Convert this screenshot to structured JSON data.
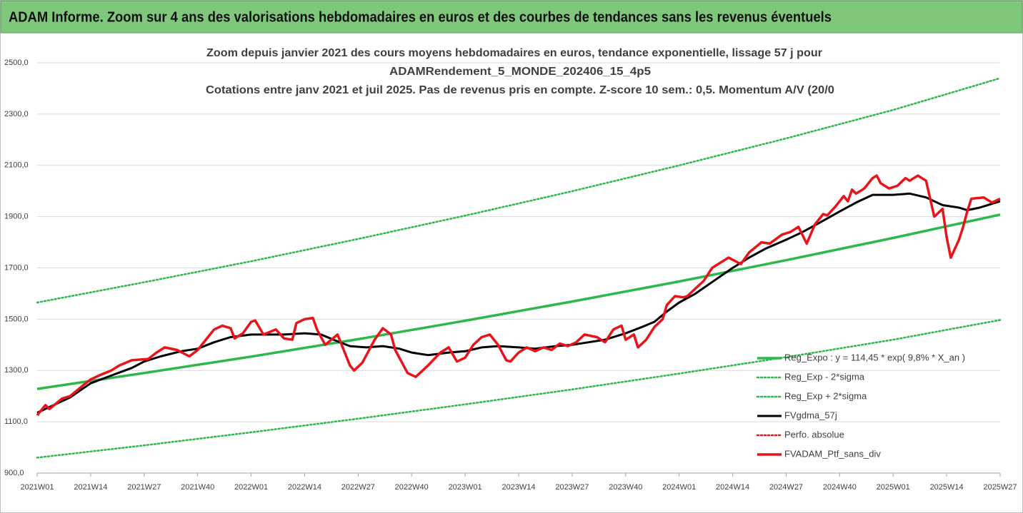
{
  "header": {
    "title": "ADAM Informe. Zoom sur 4 ans des valorisations hebdomadaires en euros et des courbes de tendances sans les revenus éventuels"
  },
  "chart_data": {
    "type": "line",
    "title_lines": [
      "Zoom depuis janvier 2021 des cours moyens hebdomadaires  en euros, tendance exponentielle, lissage 57 j pour",
      "ADAMRendement_5_MONDE_202406_15_4p5",
      "Cotations entre janv 2021 et juil 2025. Pas de revenus pris en compte. Z-score 10 sem.: 0,5. Momentum A/V (20/0"
    ],
    "xlim": [
      0,
      234
    ],
    "xticks": [
      {
        "value": 0,
        "label": "2021W01"
      },
      {
        "value": 13,
        "label": "2021W14"
      },
      {
        "value": 26,
        "label": "2021W27"
      },
      {
        "value": 39,
        "label": "2021W40"
      },
      {
        "value": 52,
        "label": "2022W01"
      },
      {
        "value": 65,
        "label": "2022W14"
      },
      {
        "value": 78,
        "label": "2022W27"
      },
      {
        "value": 91,
        "label": "2022W40"
      },
      {
        "value": 104,
        "label": "2023W01"
      },
      {
        "value": 117,
        "label": "2023W14"
      },
      {
        "value": 130,
        "label": "2023W27"
      },
      {
        "value": 143,
        "label": "2023W40"
      },
      {
        "value": 156,
        "label": "2024W01"
      },
      {
        "value": 169,
        "label": "2024W14"
      },
      {
        "value": 182,
        "label": "2024W27"
      },
      {
        "value": 195,
        "label": "2024W40"
      },
      {
        "value": 208,
        "label": "2025W01"
      },
      {
        "value": 221,
        "label": "2025W14"
      },
      {
        "value": 234,
        "label": "2025W27"
      }
    ],
    "ylim": [
      900,
      2500
    ],
    "yticks": [
      {
        "value": 900,
        "label": "900,0"
      },
      {
        "value": 1100,
        "label": "1100,0"
      },
      {
        "value": 1300,
        "label": "1300,0"
      },
      {
        "value": 1500,
        "label": "1500,0"
      },
      {
        "value": 1700,
        "label": "1700,0"
      },
      {
        "value": 1900,
        "label": "1900,0"
      },
      {
        "value": 2100,
        "label": "2100,0"
      },
      {
        "value": 2300,
        "label": "2300,0"
      },
      {
        "value": 2500,
        "label": "2500,0"
      }
    ],
    "grid": true,
    "legend": "lower right",
    "series": [
      {
        "name": "Reg_Expo : y = 114,45 * exp( 9,8% *  X_an )",
        "color": "#2db84b",
        "style": "solid",
        "x": [
          0,
          26,
          52,
          78,
          104,
          130,
          156,
          182,
          208,
          234
        ],
        "values": [
          1228,
          1290,
          1354,
          1422,
          1494,
          1569,
          1647,
          1730,
          1817,
          1908
        ]
      },
      {
        "name": "Reg_Exp - 2*sigma",
        "color": "#2db84b",
        "style": "dotted",
        "x": [
          0,
          26,
          52,
          78,
          104,
          130,
          156,
          182,
          208,
          234
        ],
        "values": [
          960,
          1008,
          1059,
          1112,
          1168,
          1226,
          1288,
          1352,
          1420,
          1497
        ]
      },
      {
        "name": "Reg_Exp + 2*sigma",
        "color": "#2db84b",
        "style": "dotted",
        "x": [
          0,
          26,
          52,
          78,
          104,
          130,
          156,
          182,
          208,
          234
        ],
        "values": [
          1565,
          1644,
          1726,
          1813,
          1904,
          1999,
          2100,
          2205,
          2316,
          2440
        ]
      },
      {
        "name": "FVgdma_57j",
        "color": "#000000",
        "style": "solid",
        "x": [
          0,
          4,
          8,
          13,
          18,
          23,
          26,
          30,
          35,
          39,
          43,
          47,
          52,
          56,
          60,
          65,
          69,
          72,
          76,
          80,
          84,
          88,
          91,
          95,
          100,
          104,
          108,
          112,
          117,
          121,
          126,
          130,
          134,
          138,
          143,
          147,
          150,
          153,
          156,
          160,
          164,
          169,
          173,
          177,
          182,
          186,
          190,
          195,
          199,
          203,
          208,
          212,
          216,
          220,
          224,
          226,
          229,
          232,
          234
        ],
        "values": [
          1135,
          1165,
          1195,
          1250,
          1280,
          1310,
          1335,
          1355,
          1375,
          1385,
          1410,
          1430,
          1440,
          1440,
          1440,
          1445,
          1440,
          1420,
          1395,
          1390,
          1395,
          1385,
          1370,
          1360,
          1370,
          1375,
          1390,
          1395,
          1390,
          1385,
          1395,
          1400,
          1410,
          1420,
          1445,
          1470,
          1490,
          1530,
          1565,
          1600,
          1645,
          1700,
          1740,
          1775,
          1810,
          1840,
          1875,
          1920,
          1955,
          1985,
          1985,
          1990,
          1975,
          1945,
          1935,
          1925,
          1935,
          1950,
          1960
        ]
      },
      {
        "name": "Perfo. absolue",
        "color": "#e8141a",
        "style": "dotted"
      },
      {
        "name": "FVADAM_Ptf_sans_div",
        "color": "#e8141a",
        "style": "solid",
        "x": [
          0,
          2,
          3,
          6,
          8,
          11,
          13,
          15,
          18,
          20,
          23,
          27,
          29,
          31,
          34,
          37,
          39,
          41,
          43,
          45,
          47,
          48,
          50,
          52,
          53,
          55,
          58,
          60,
          62,
          63,
          65,
          67,
          68,
          70,
          73,
          74,
          76,
          77,
          79,
          80,
          82,
          84,
          86,
          87,
          90,
          92,
          95,
          98,
          100,
          102,
          104,
          106,
          108,
          110,
          112,
          114,
          115,
          117,
          119,
          121,
          123,
          125,
          127,
          129,
          131,
          133,
          136,
          138,
          140,
          142,
          143,
          145,
          146,
          148,
          150,
          152,
          153,
          155,
          157,
          158,
          159,
          162,
          164,
          168,
          171,
          173,
          176,
          178,
          181,
          183,
          185,
          187,
          189,
          191,
          192,
          194,
          196,
          197,
          198,
          199,
          201,
          203,
          204,
          205,
          207,
          209,
          211,
          212,
          214,
          216,
          218,
          220,
          221,
          222,
          224,
          225,
          226,
          227,
          230,
          231,
          232,
          234
        ],
        "values": [
          1125,
          1165,
          1150,
          1190,
          1200,
          1240,
          1265,
          1280,
          1300,
          1320,
          1340,
          1345,
          1370,
          1390,
          1380,
          1355,
          1380,
          1420,
          1460,
          1475,
          1465,
          1425,
          1445,
          1490,
          1495,
          1440,
          1460,
          1425,
          1420,
          1485,
          1500,
          1505,
          1460,
          1400,
          1440,
          1400,
          1320,
          1300,
          1330,
          1360,
          1420,
          1465,
          1440,
          1380,
          1290,
          1275,
          1320,
          1370,
          1390,
          1335,
          1350,
          1400,
          1430,
          1440,
          1400,
          1340,
          1335,
          1370,
          1390,
          1375,
          1390,
          1380,
          1405,
          1395,
          1410,
          1440,
          1430,
          1410,
          1460,
          1475,
          1420,
          1440,
          1390,
          1420,
          1470,
          1500,
          1555,
          1590,
          1585,
          1590,
          1605,
          1650,
          1700,
          1740,
          1715,
          1760,
          1800,
          1795,
          1830,
          1840,
          1860,
          1795,
          1870,
          1910,
          1905,
          1940,
          1980,
          1960,
          2005,
          1990,
          2010,
          2050,
          2060,
          2030,
          2010,
          2020,
          2050,
          2040,
          2060,
          2040,
          1900,
          1930,
          1820,
          1740,
          1810,
          1860,
          1920,
          1970,
          1975,
          1965,
          1955,
          1970
        ]
      }
    ]
  }
}
